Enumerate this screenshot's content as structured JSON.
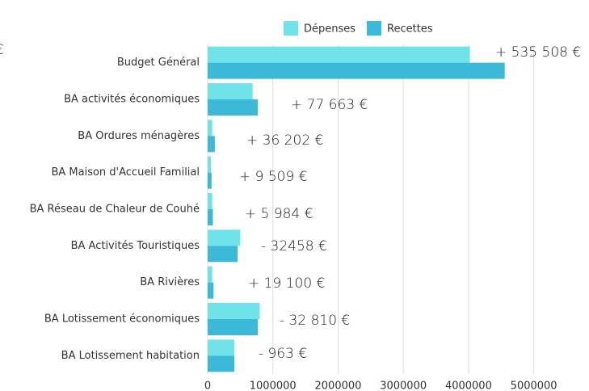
{
  "chart_data": {
    "type": "bar",
    "orientation": "horizontal",
    "categories": [
      "Budget Général",
      "BA activités économiques",
      "BA Ordures ménagères",
      "BA Maison d'Accueil Familial",
      "BA Réseau de Chaleur de Couhé",
      "BA Activités Touristiques",
      "BA Rivières",
      "BA Lotissement économiques",
      "BA Lotissement habitation"
    ],
    "series": [
      {
        "name": "Dépenses",
        "color": "#6fe3e8",
        "values": [
          4020000,
          690000,
          70000,
          50000,
          70000,
          500000,
          70000,
          800000,
          410000
        ]
      },
      {
        "name": "Recettes",
        "color": "#3cb9d8",
        "values": [
          4555000,
          770000,
          110000,
          60000,
          80000,
          460000,
          90000,
          770000,
          410000
        ]
      }
    ],
    "xlim": [
      0,
      5500000
    ],
    "xticks": [
      0,
      1000000,
      2000000,
      3000000,
      4000000,
      5000000
    ],
    "grid": true,
    "legend": "top",
    "annotations": [
      "+ 535 508 €",
      "+ 77 663 €",
      "+ 36 202 €",
      "+ 9 509 €",
      "+ 5 984 €",
      "- 32458 €",
      "+ 19 100 €",
      "- 32 810 €",
      "- 963 €",
      "€"
    ]
  }
}
